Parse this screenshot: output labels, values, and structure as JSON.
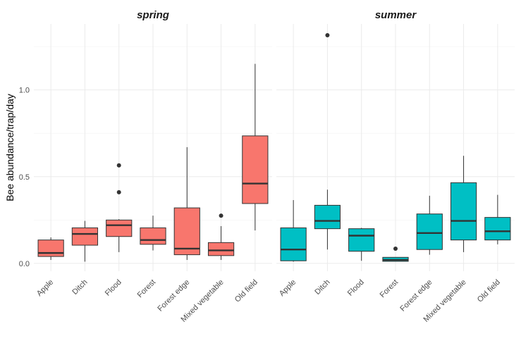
{
  "chart_data": {
    "type": "box",
    "ylabel": "Bee abundance/trap/day",
    "xlabel": "",
    "ylim": [
      -0.045,
      1.38
    ],
    "y_ticks": [
      0.0,
      0.5,
      1.0
    ],
    "y_tick_labels": [
      "0.0",
      "0.5",
      "1.0"
    ],
    "grid": true,
    "legend": "none",
    "categories": [
      "Apple",
      "Ditch",
      "Flood",
      "Forest",
      "Forest edge",
      "Mixed vegetable",
      "Old field"
    ],
    "panels": [
      {
        "title": "spring",
        "fill": "#F8766D",
        "boxes": [
          {
            "category": "Apple",
            "whisker_low": 0.02,
            "q1": 0.04,
            "median": 0.06,
            "q3": 0.135,
            "whisker_high": 0.15,
            "outliers": []
          },
          {
            "category": "Ditch",
            "whisker_low": 0.01,
            "q1": 0.105,
            "median": 0.17,
            "q3": 0.205,
            "whisker_high": 0.245,
            "outliers": []
          },
          {
            "category": "Flood",
            "whisker_low": 0.065,
            "q1": 0.155,
            "median": 0.22,
            "q3": 0.25,
            "whisker_high": 0.255,
            "outliers": [
              0.41,
              0.565
            ]
          },
          {
            "category": "Forest",
            "whisker_low": 0.075,
            "q1": 0.11,
            "median": 0.135,
            "q3": 0.205,
            "whisker_high": 0.275,
            "outliers": []
          },
          {
            "category": "Forest edge",
            "whisker_low": 0.02,
            "q1": 0.05,
            "median": 0.085,
            "q3": 0.32,
            "whisker_high": 0.67,
            "outliers": []
          },
          {
            "category": "Mixed vegetable",
            "whisker_low": 0.02,
            "q1": 0.045,
            "median": 0.075,
            "q3": 0.12,
            "whisker_high": 0.215,
            "outliers": [
              0.275
            ]
          },
          {
            "category": "Old field",
            "whisker_low": 0.19,
            "q1": 0.345,
            "median": 0.46,
            "q3": 0.735,
            "whisker_high": 1.15,
            "outliers": []
          }
        ]
      },
      {
        "title": "summer",
        "fill": "#00BFC4",
        "boxes": [
          {
            "category": "Apple",
            "whisker_low": 0.01,
            "q1": 0.015,
            "median": 0.08,
            "q3": 0.205,
            "whisker_high": 0.365,
            "outliers": []
          },
          {
            "category": "Ditch",
            "whisker_low": 0.08,
            "q1": 0.2,
            "median": 0.245,
            "q3": 0.335,
            "whisker_high": 0.425,
            "outliers": [
              1.315
            ]
          },
          {
            "category": "Flood",
            "whisker_low": 0.015,
            "q1": 0.07,
            "median": 0.16,
            "q3": 0.2,
            "whisker_high": 0.205,
            "outliers": []
          },
          {
            "category": "Forest",
            "whisker_low": 0.012,
            "q1": 0.012,
            "median": 0.02,
            "q3": 0.035,
            "whisker_high": 0.035,
            "outliers": [
              0.085
            ]
          },
          {
            "category": "Forest edge",
            "whisker_low": 0.05,
            "q1": 0.08,
            "median": 0.175,
            "q3": 0.285,
            "whisker_high": 0.39,
            "outliers": []
          },
          {
            "category": "Mixed vegetable",
            "whisker_low": 0.065,
            "q1": 0.135,
            "median": 0.245,
            "q3": 0.465,
            "whisker_high": 0.62,
            "outliers": []
          },
          {
            "category": "Old field",
            "whisker_low": 0.11,
            "q1": 0.135,
            "median": 0.185,
            "q3": 0.265,
            "whisker_high": 0.395,
            "outliers": []
          }
        ]
      }
    ]
  }
}
